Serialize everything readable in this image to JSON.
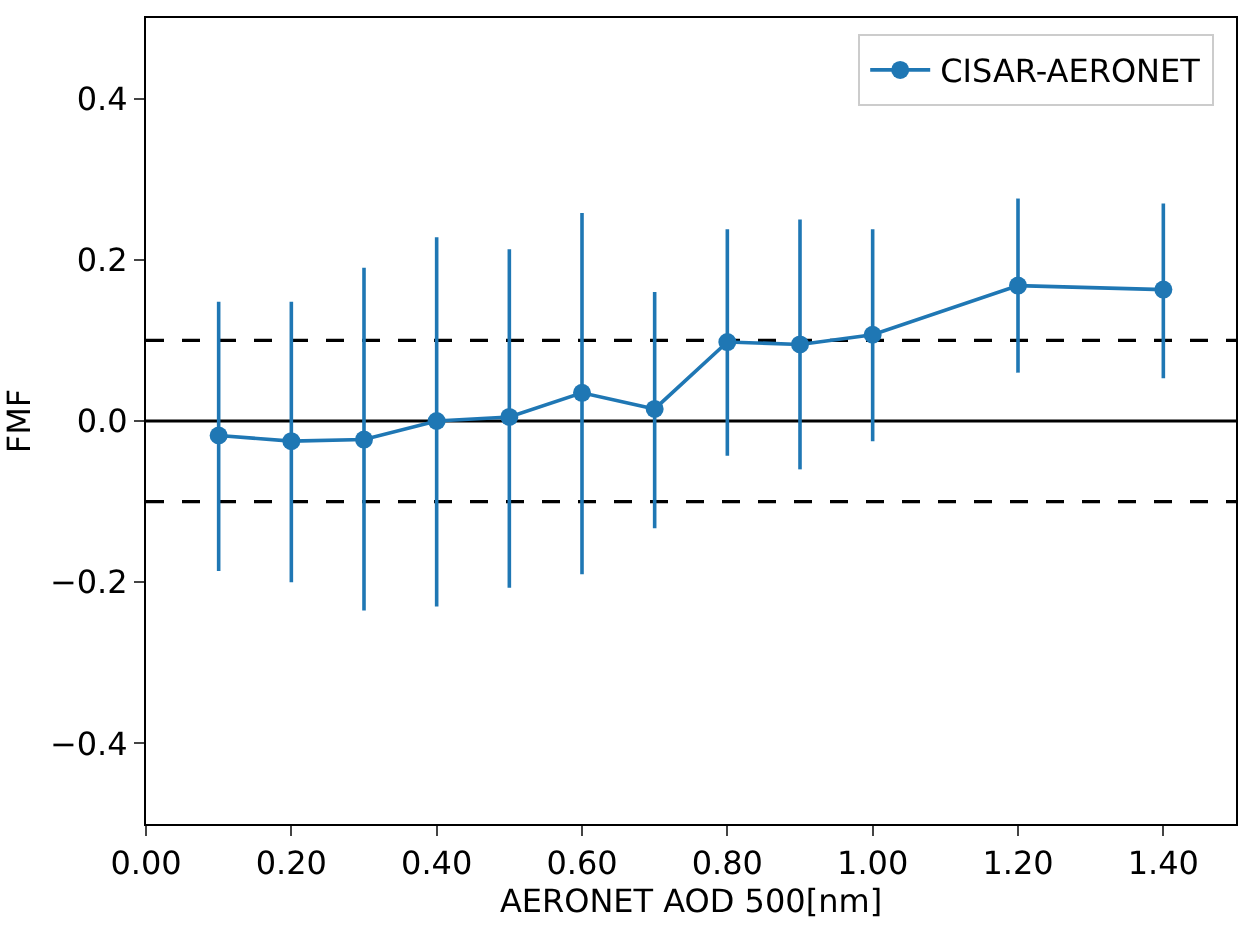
{
  "chart_data": {
    "type": "line",
    "xlabel": "AERONET AOD 500[nm]",
    "ylabel": "FMF",
    "x": [
      0.1,
      0.2,
      0.3,
      0.4,
      0.5,
      0.6,
      0.7,
      0.8,
      0.9,
      1.0,
      1.2,
      1.4
    ],
    "series": [
      {
        "name": "CISAR-AERONET",
        "color": "#1f77b4",
        "values": [
          -0.018,
          -0.025,
          -0.023,
          0.0,
          0.005,
          0.035,
          0.015,
          0.098,
          0.095,
          0.107,
          0.168,
          0.163
        ],
        "errors": [
          [
            -0.186,
            0.148
          ],
          [
            -0.2,
            0.148
          ],
          [
            -0.235,
            0.19
          ],
          [
            -0.23,
            0.228
          ],
          [
            -0.207,
            0.213
          ],
          [
            -0.19,
            0.258
          ],
          [
            -0.133,
            0.16
          ],
          [
            -0.043,
            0.238
          ],
          [
            -0.06,
            0.25
          ],
          [
            -0.025,
            0.238
          ],
          [
            0.06,
            0.276
          ],
          [
            0.053,
            0.27
          ]
        ]
      }
    ],
    "xlim": [
      0.0,
      1.5
    ],
    "xticks": [
      {
        "value": 0.0,
        "label": "0.00"
      },
      {
        "value": 0.2,
        "label": "0.20"
      },
      {
        "value": 0.4,
        "label": "0.40"
      },
      {
        "value": 0.6,
        "label": "0.60"
      },
      {
        "value": 0.8,
        "label": "0.80"
      },
      {
        "value": 1.0,
        "label": "1.00"
      },
      {
        "value": 1.2,
        "label": "1.20"
      },
      {
        "value": 1.4,
        "label": "1.40"
      }
    ],
    "ylim": [
      -0.5,
      0.5
    ],
    "yticks": [
      {
        "value": -0.4,
        "label": "−0.4"
      },
      {
        "value": -0.2,
        "label": "−0.2"
      },
      {
        "value": 0.0,
        "label": "0.0"
      },
      {
        "value": 0.2,
        "label": "0.2"
      },
      {
        "value": 0.4,
        "label": "0.4"
      }
    ],
    "ref_lines": [
      {
        "axis": "y",
        "value": 0,
        "color": "#000000",
        "line_style": "solid"
      },
      {
        "axis": "y",
        "value": 0.1,
        "color": "#000000",
        "line_style": "dashed"
      },
      {
        "axis": "y",
        "value": -0.1,
        "color": "#000000",
        "line_style": "dashed"
      }
    ],
    "grid": false,
    "legend": "top right",
    "marker": "circle",
    "line_style": "solid"
  }
}
